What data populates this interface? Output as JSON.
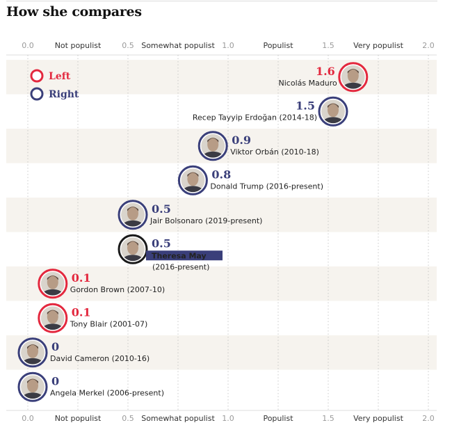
{
  "title": "How she compares",
  "colors": {
    "left": "#e3283e",
    "right": "#3a3f7a",
    "highlight": "#3a3f7a",
    "band": "#f6f3ee",
    "grid": "#bdbdbd"
  },
  "legend": [
    {
      "label": "Left",
      "side": "left",
      "icon": "left-party-ring-icon"
    },
    {
      "label": "Right",
      "side": "right",
      "icon": "right-party-ring-icon"
    }
  ],
  "chart_data": {
    "type": "scatter",
    "title": "How she compares",
    "xlim": [
      0,
      2
    ],
    "ticks": [
      {
        "value": 0,
        "label": "0.0"
      },
      {
        "value": 0.5,
        "label": "0.5"
      },
      {
        "value": 1.0,
        "label": "1.0"
      },
      {
        "value": 1.5,
        "label": "1.5"
      },
      {
        "value": 2.0,
        "label": "2.0"
      }
    ],
    "category_labels": [
      {
        "value": 0.25,
        "label": "Not populist"
      },
      {
        "value": 0.75,
        "label": "Somewhat populist"
      },
      {
        "value": 1.25,
        "label": "Populist"
      },
      {
        "value": 1.75,
        "label": "Very populist"
      }
    ],
    "grid": true,
    "points": [
      {
        "value": 1.6,
        "value_label": "1.6",
        "name": "Nicolás Maduro",
        "side": "left",
        "highlight": false,
        "align": "left"
      },
      {
        "value": 1.5,
        "value_label": "1.5",
        "name": "Recep Tayyip Erdoğan (2014-18)",
        "side": "right",
        "highlight": false,
        "align": "left"
      },
      {
        "value": 0.9,
        "value_label": "0.9",
        "name": "Viktor Orbán (2010-18)",
        "side": "right",
        "highlight": false,
        "align": "right"
      },
      {
        "value": 0.8,
        "value_label": "0.8",
        "name": "Donald Trump (2016-present)",
        "side": "right",
        "highlight": false,
        "align": "right"
      },
      {
        "value": 0.5,
        "value_label": "0.5",
        "name": "Jair Bolsonaro (2019-present)",
        "side": "right",
        "highlight": false,
        "align": "right"
      },
      {
        "value": 0.5,
        "value_label": "0.5",
        "name": "Theresa May",
        "name_extra": "(2016-present)",
        "side": "right",
        "highlight": true,
        "align": "right"
      },
      {
        "value": 0.1,
        "value_label": "0.1",
        "name": "Gordon Brown (2007-10)",
        "side": "left",
        "highlight": false,
        "align": "right"
      },
      {
        "value": 0.1,
        "value_label": "0.1",
        "name": "Tony Blair (2001-07)",
        "side": "left",
        "highlight": false,
        "align": "right"
      },
      {
        "value": 0,
        "value_label": "0",
        "name": "David Cameron (2010-16)",
        "side": "right",
        "highlight": false,
        "align": "right"
      },
      {
        "value": 0,
        "value_label": "0",
        "name": "Angela Merkel (2006-present)",
        "side": "right",
        "highlight": false,
        "align": "right"
      }
    ]
  }
}
